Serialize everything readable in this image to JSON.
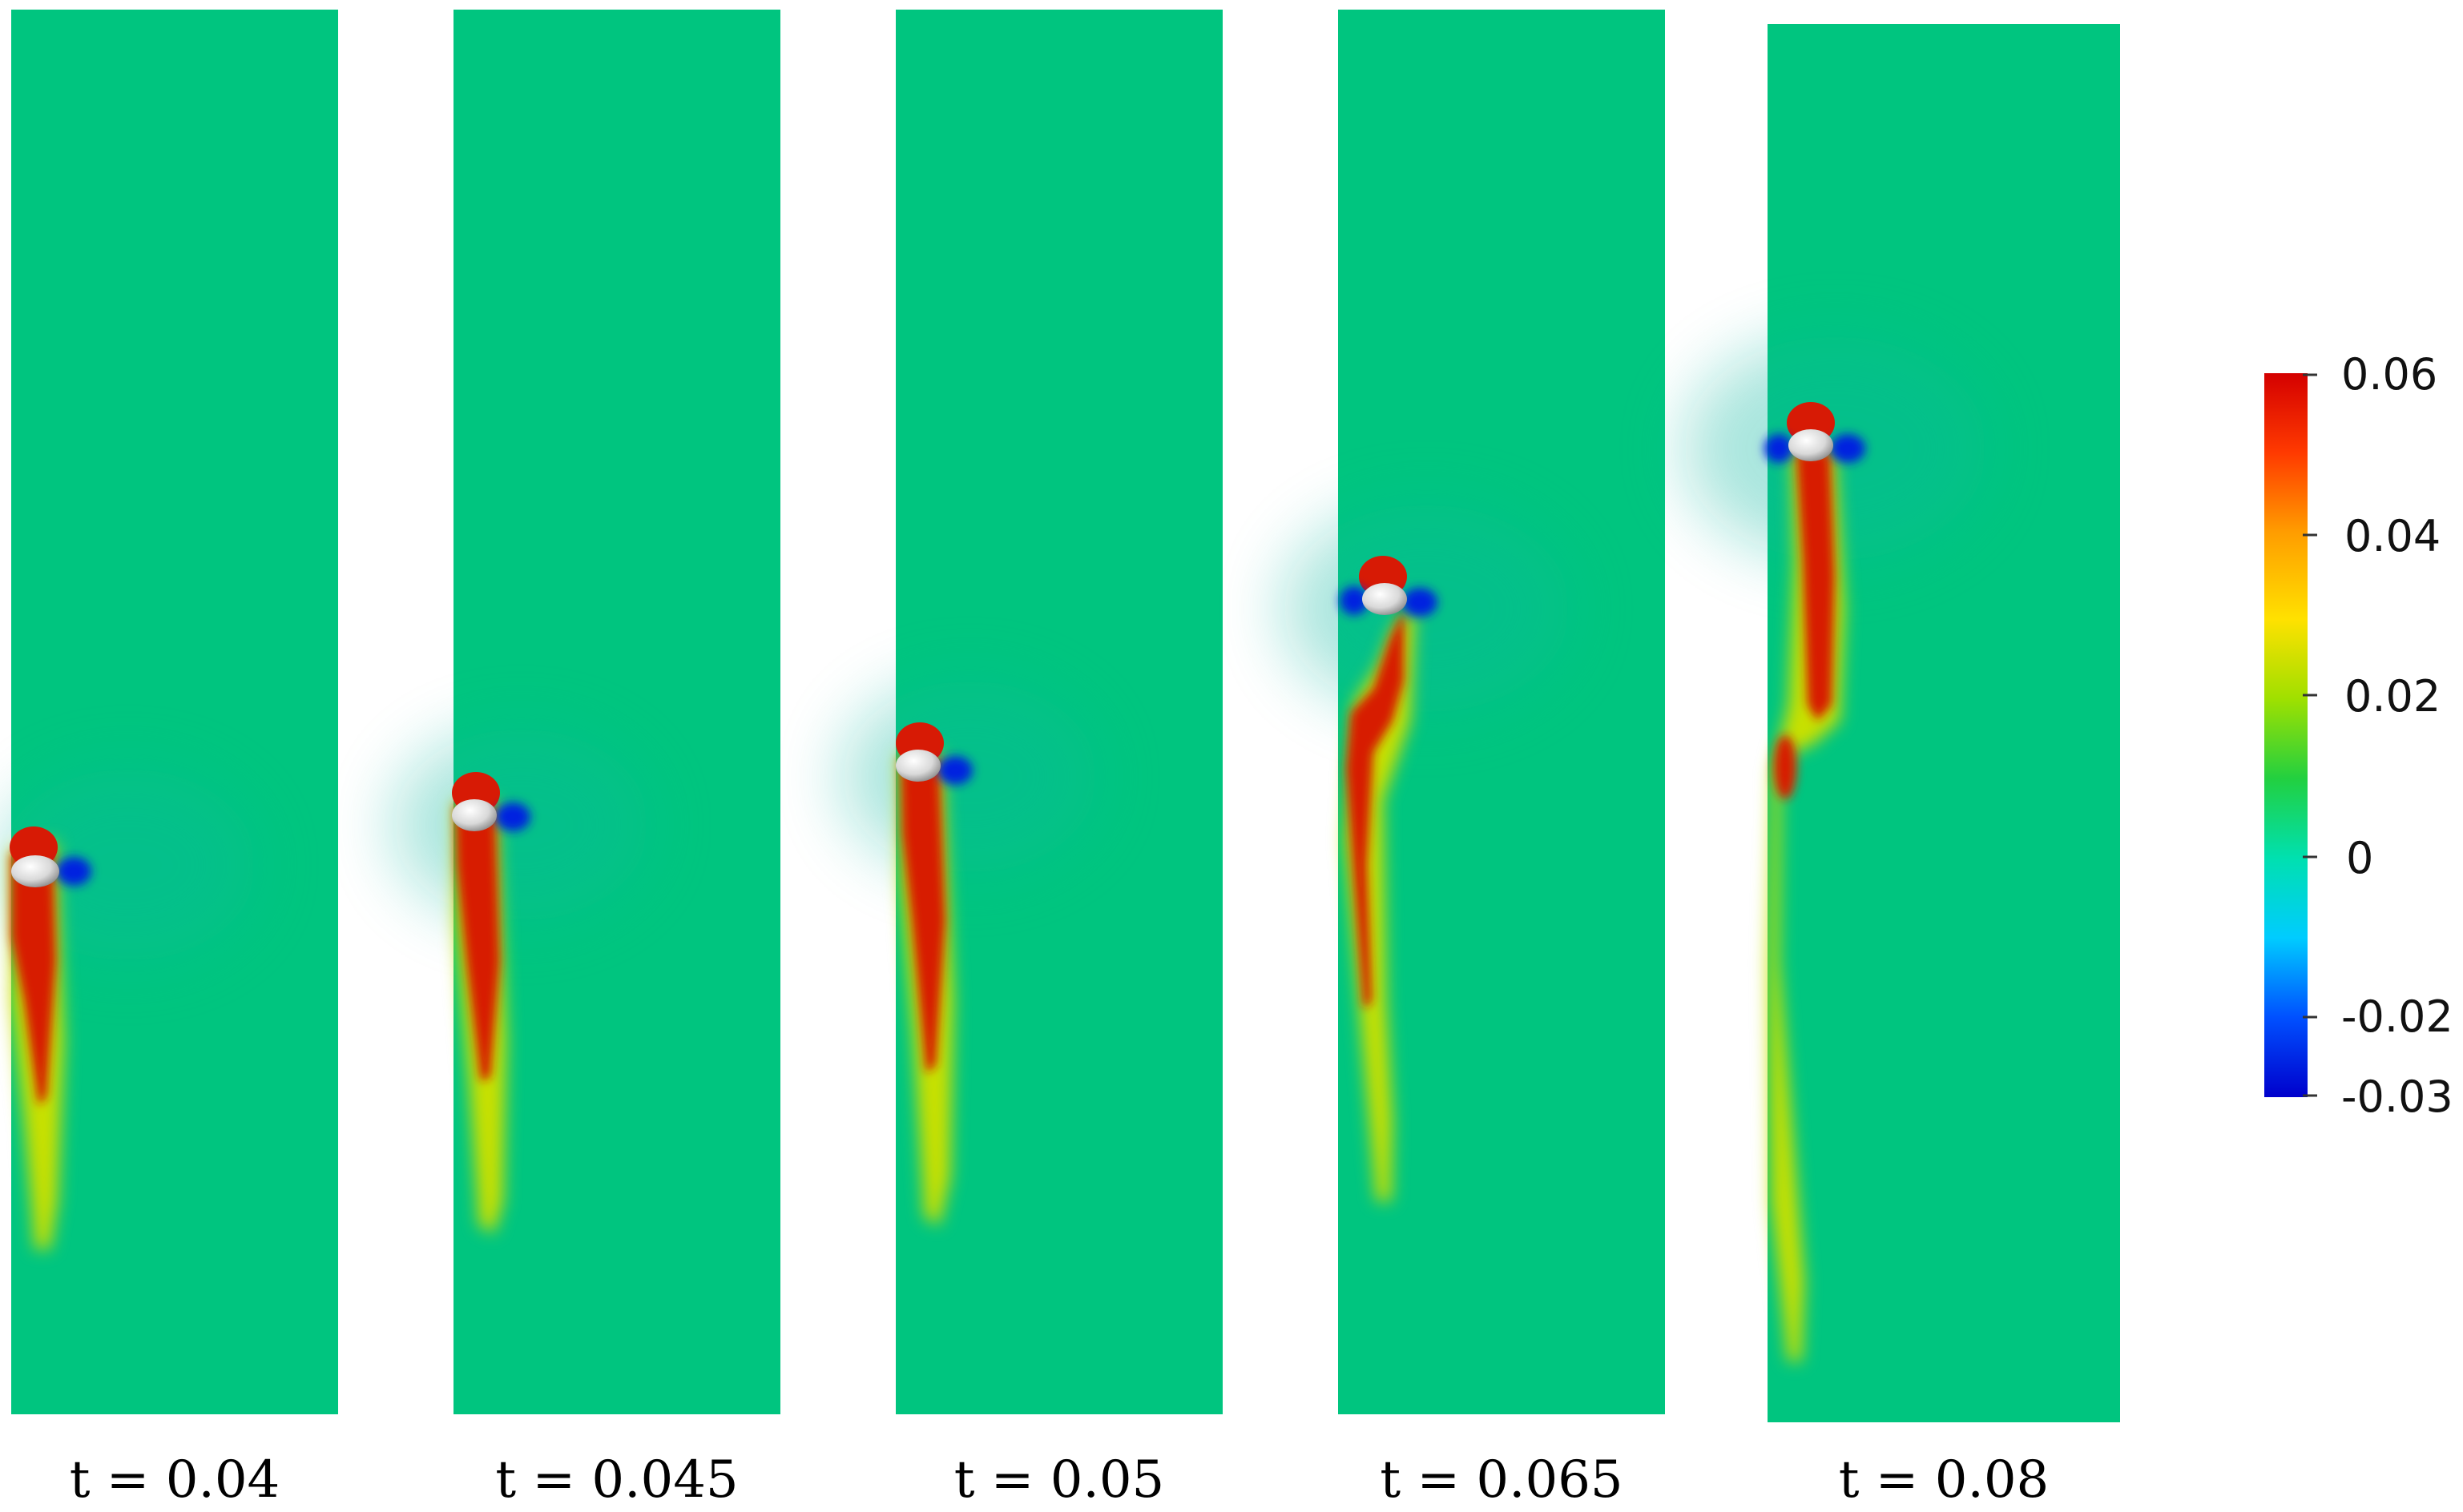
{
  "panels": [
    {
      "label": "t = 0.04"
    },
    {
      "label": "t = 0.045"
    },
    {
      "label": "t = 0.05"
    },
    {
      "label": "t = 0.065"
    },
    {
      "label": "t = 0.08"
    }
  ],
  "colorbar": {
    "ticks": [
      "0.06",
      "0.04",
      "0.02",
      "0",
      "-0.02",
      "-0.03"
    ],
    "colors": [
      "#d40000",
      "#ff6a00",
      "#ffd700",
      "#9fe000",
      "#22d040",
      "#00ffdd",
      "#00b0ff",
      "#0038ff",
      "#0000cc"
    ]
  },
  "colors": {
    "field_background": "#00c57f",
    "wake": "#d71a05",
    "negative_lobe": "#0020e0",
    "sphere": "#e6e6e6"
  }
}
